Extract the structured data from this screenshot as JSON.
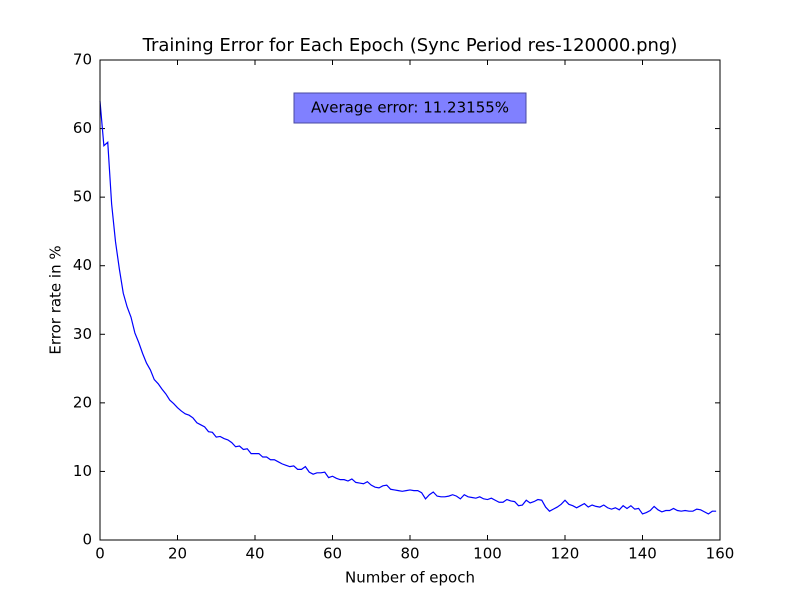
{
  "chart_data": {
    "type": "line",
    "title": "Training Error for Each Epoch (Sync Period res-120000.png)",
    "x_label": "Number of epoch",
    "y_label": "Error rate in %",
    "annotation": "Average error: 11.23155%",
    "x": [
      0,
      1,
      2,
      3,
      4,
      5,
      6,
      7,
      8,
      9,
      10,
      11,
      12,
      13,
      14,
      15,
      16,
      17,
      18,
      19,
      20,
      21,
      22,
      23,
      24,
      25,
      26,
      27,
      28,
      29,
      30,
      31,
      32,
      33,
      34,
      35,
      36,
      37,
      38,
      39,
      40,
      41,
      42,
      43,
      44,
      45,
      46,
      47,
      48,
      49,
      50,
      51,
      52,
      53,
      54,
      55,
      56,
      57,
      58,
      59,
      60,
      61,
      62,
      63,
      64,
      65,
      66,
      67,
      68,
      69,
      70,
      71,
      72,
      73,
      74,
      75,
      76,
      77,
      78,
      79,
      80,
      81,
      82,
      83,
      84,
      85,
      86,
      87,
      88,
      89,
      90,
      91,
      92,
      93,
      94,
      95,
      96,
      97,
      98,
      99,
      100,
      101,
      102,
      103,
      104,
      105,
      106,
      107,
      108,
      109,
      110,
      111,
      112,
      113,
      114,
      115,
      116,
      117,
      118,
      119,
      120,
      121,
      122,
      123,
      124,
      125,
      126,
      127,
      128,
      129,
      130,
      131,
      132,
      133,
      134,
      135,
      136,
      137,
      138,
      139,
      140,
      141,
      142,
      143,
      144,
      145,
      146,
      147,
      148,
      149,
      150,
      151,
      152,
      153,
      154,
      155,
      156,
      157,
      158,
      159
    ],
    "series": [
      {
        "color": "#0000ff",
        "values": [
          64,
          57.5,
          58,
          49,
          43.5,
          39.5,
          36,
          34,
          32.5,
          30.2,
          28.8,
          27.2,
          25.8,
          24.8,
          23.4,
          22.8,
          22,
          21.3,
          20.4,
          19.9,
          19.3,
          18.8,
          18.4,
          18.2,
          17.8,
          17.1,
          16.8,
          16.5,
          15.8,
          15.7,
          15,
          15.1,
          14.8,
          14.6,
          14.2,
          13.6,
          13.7,
          13.2,
          13.3,
          12.6,
          12.6,
          12.6,
          12.1,
          12.1,
          11.7,
          11.7,
          11.4,
          11.1,
          10.9,
          10.7,
          10.8,
          10.3,
          10.3,
          10.7,
          9.9,
          9.6,
          9.8,
          9.8,
          9.9,
          9.1,
          9.3,
          9.0,
          8.8,
          8.8,
          8.6,
          8.9,
          8.4,
          8.3,
          8.2,
          8.5,
          8.0,
          7.7,
          7.6,
          7.9,
          8.0,
          7.4,
          7.3,
          7.2,
          7.1,
          7.2,
          7.3,
          7.2,
          7.2,
          6.9,
          6.0,
          6.6,
          7.0,
          6.4,
          6.3,
          6.3,
          6.4,
          6.6,
          6.4,
          6.0,
          6.6,
          6.3,
          6.2,
          6.1,
          6.3,
          6.0,
          5.9,
          6.1,
          5.8,
          5.5,
          5.5,
          5.9,
          5.7,
          5.6,
          5.0,
          5.1,
          5.8,
          5.4,
          5.6,
          5.9,
          5.8,
          4.8,
          4.2,
          4.5,
          4.8,
          5.2,
          5.8,
          5.2,
          5.0,
          4.7,
          5.0,
          5.3,
          4.8,
          5.1,
          4.9,
          4.8,
          5.1,
          4.7,
          4.5,
          4.7,
          4.4,
          5.0,
          4.6,
          5.0,
          4.5,
          4.6,
          3.8,
          4.0,
          4.3,
          4.9,
          4.4,
          4.1,
          4.3,
          4.3,
          4.6,
          4.3,
          4.2,
          4.3,
          4.2,
          4.2,
          4.5,
          4.4,
          4.1,
          3.8,
          4.2,
          4.2
        ]
      }
    ],
    "xlim": [
      0,
      160
    ],
    "xticks": [
      0,
      20,
      40,
      60,
      80,
      100,
      120,
      140,
      160
    ],
    "ylim": [
      0,
      70
    ],
    "yticks": [
      0,
      10,
      20,
      30,
      40,
      50,
      60,
      70
    ]
  }
}
